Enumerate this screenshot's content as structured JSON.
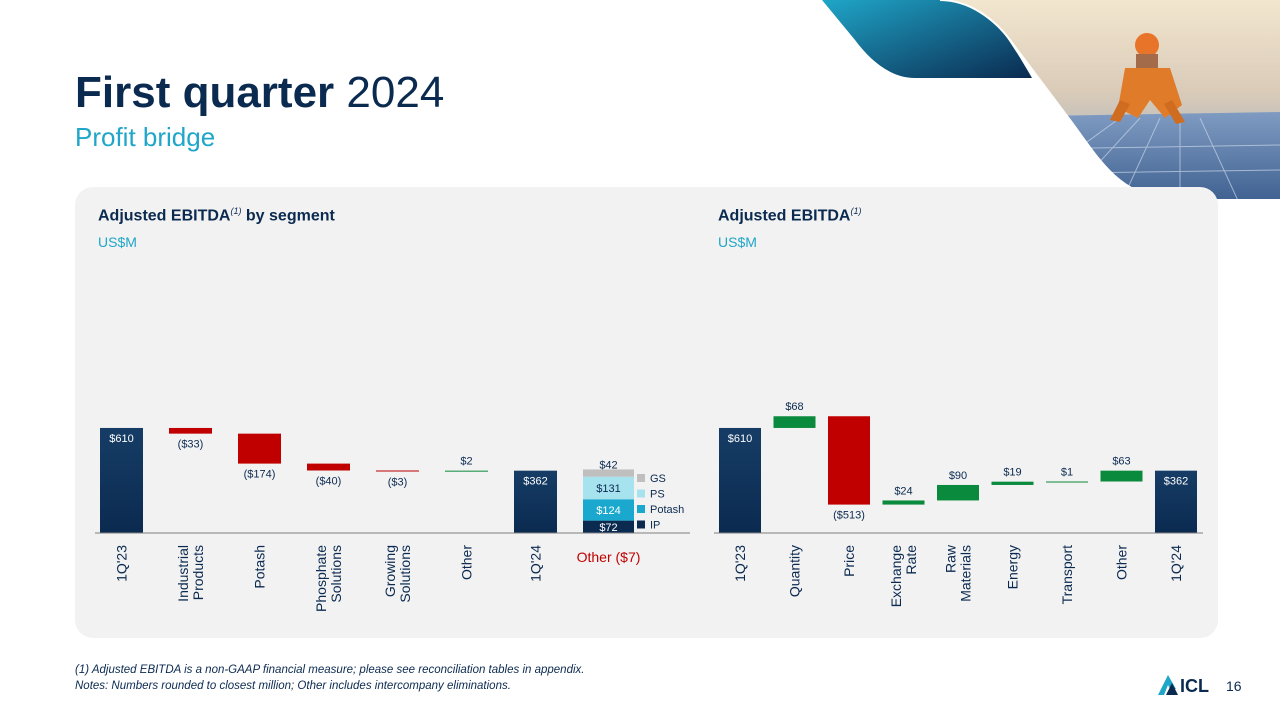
{
  "slide": {
    "title_bold": "First quarter",
    "title_year": "2024",
    "subtitle": "Profit bridge",
    "page_number": "16",
    "logo_text": "ICL"
  },
  "charts": [
    {
      "heading": "Adjusted EBITDA",
      "heading_sup": "(1)",
      "heading_suffix": " by segment",
      "unit": "US$M"
    },
    {
      "heading": "Adjusted EBITDA",
      "heading_sup": "(1)",
      "heading_suffix": "",
      "unit": "US$M"
    }
  ],
  "footnotes": [
    "(1) Adjusted EBITDA is a non-GAAP financial measure; please see reconciliation tables in appendix.",
    "Notes: Numbers rounded to closest million; Other includes intercompany eliminations."
  ],
  "colors": {
    "total": "#0b2a50",
    "decrease": "#c00000",
    "increase": "#0a8a3c",
    "accent": "#1fa6c8",
    "panel": "#f2f2f2"
  },
  "chart_data": [
    {
      "type": "waterfall",
      "title": "Adjusted EBITDA by segment",
      "unit": "US$M",
      "categories": [
        "1Q'23",
        "Industrial Products",
        "Potash",
        "Phosphate Solutions",
        "Growing Solutions",
        "Other",
        "1Q'24"
      ],
      "values": [
        610,
        -33,
        -174,
        -40,
        -3,
        2,
        362
      ],
      "kinds": [
        "total",
        "delta",
        "delta",
        "delta",
        "delta",
        "delta",
        "total"
      ],
      "labels": [
        "$610",
        "($33)",
        "($174)",
        "($40)",
        "($3)",
        "$2",
        "$362"
      ],
      "stack": {
        "segments": [
          {
            "name": "IP",
            "value": 72,
            "label": "$72",
            "color": "#0b2a50"
          },
          {
            "name": "Potash",
            "value": 124,
            "label": "$124",
            "color": "#1ba8cf"
          },
          {
            "name": "PS",
            "value": 131,
            "label": "$131",
            "color": "#a6e3ef"
          },
          {
            "name": "GS",
            "value": 42,
            "label": "$42",
            "color": "#bfbfbf"
          }
        ],
        "note": "Other ($7)"
      }
    },
    {
      "type": "waterfall",
      "title": "Adjusted EBITDA",
      "unit": "US$M",
      "categories": [
        "1Q'23",
        "Quantity",
        "Price",
        "Exchange Rate",
        "Raw Materials",
        "Energy",
        "Transport",
        "Other",
        "1Q'24"
      ],
      "values": [
        610,
        68,
        -513,
        24,
        90,
        19,
        1,
        63,
        362
      ],
      "kinds": [
        "total",
        "delta",
        "delta",
        "delta",
        "delta",
        "delta",
        "delta",
        "delta",
        "total"
      ],
      "labels": [
        "$610",
        "$68",
        "($513)",
        "$24",
        "$90",
        "$19",
        "$1",
        "$63",
        "$362"
      ]
    }
  ]
}
